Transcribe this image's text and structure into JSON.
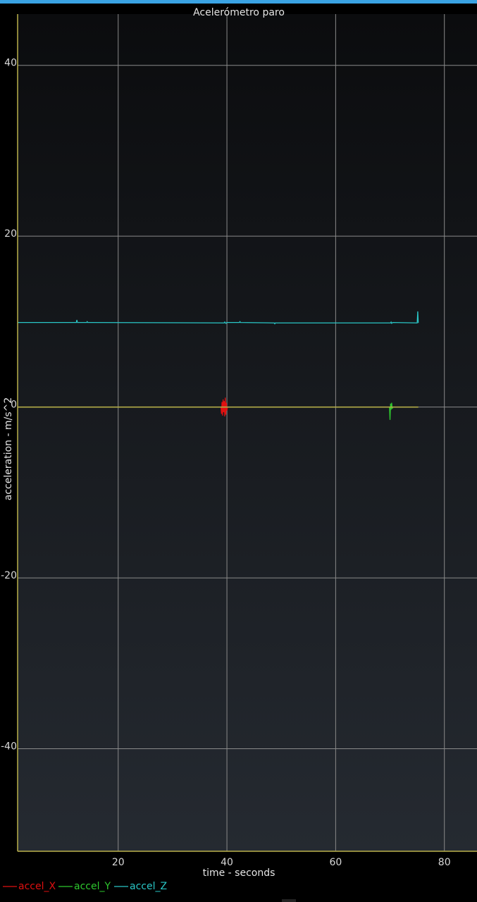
{
  "chart_data": {
    "type": "line",
    "title": "Acelerómetro paro",
    "xlabel": "time - seconds",
    "ylabel": "acceleration - m/s^2",
    "xlim": [
      1.5,
      86
    ],
    "ylim": [
      -52,
      46
    ],
    "x_ticks": [
      20,
      40,
      60,
      80
    ],
    "y_ticks": [
      40,
      20,
      0,
      -20,
      -40
    ],
    "grid": true,
    "legend_position": "bottom-left",
    "colors": {
      "background_top": "#0b0c0e",
      "background_bottom": "#252a31",
      "grid": "#8a8a8a",
      "axis": "#b9b04a",
      "accent_bar": "#3aa3e3"
    },
    "series": [
      {
        "name": "accel_X",
        "color": "#e01010",
        "points": [
          [
            1.5,
            0
          ],
          [
            38.9,
            0
          ],
          [
            39.0,
            -0.8
          ],
          [
            39.1,
            0.6
          ],
          [
            39.2,
            -1.0
          ],
          [
            39.3,
            0.9
          ],
          [
            39.4,
            -0.6
          ],
          [
            39.5,
            0.7
          ],
          [
            39.6,
            -1.1
          ],
          [
            39.7,
            1.1
          ],
          [
            39.8,
            -0.9
          ],
          [
            39.9,
            0.5
          ],
          [
            40.0,
            -0.4
          ],
          [
            40.1,
            0
          ],
          [
            75.2,
            0
          ]
        ]
      },
      {
        "name": "accel_Y",
        "color": "#2ec82e",
        "points": [
          [
            1.5,
            0
          ],
          [
            69.9,
            0
          ],
          [
            70.0,
            -1.5
          ],
          [
            70.1,
            0.4
          ],
          [
            70.2,
            -0.3
          ],
          [
            70.3,
            0.5
          ],
          [
            70.4,
            -0.2
          ],
          [
            70.5,
            0
          ],
          [
            75.2,
            0
          ]
        ]
      },
      {
        "name": "accel_Z",
        "color": "#29c6c6",
        "points": [
          [
            1.5,
            9.9
          ],
          [
            12.3,
            9.9
          ],
          [
            12.4,
            10.2
          ],
          [
            12.5,
            9.9
          ],
          [
            14.2,
            9.9
          ],
          [
            14.3,
            10.0
          ],
          [
            14.4,
            9.9
          ],
          [
            39.5,
            9.85
          ],
          [
            39.6,
            9.95
          ],
          [
            39.8,
            9.8
          ],
          [
            40.0,
            9.9
          ],
          [
            42.3,
            9.9
          ],
          [
            42.4,
            10.0
          ],
          [
            42.5,
            9.9
          ],
          [
            48.7,
            9.85
          ],
          [
            48.8,
            9.75
          ],
          [
            48.9,
            9.85
          ],
          [
            70.1,
            9.85
          ],
          [
            70.2,
            9.95
          ],
          [
            70.3,
            9.8
          ],
          [
            70.5,
            9.9
          ],
          [
            75.0,
            9.85
          ],
          [
            75.1,
            11.2
          ],
          [
            75.2,
            9.85
          ]
        ]
      }
    ]
  }
}
